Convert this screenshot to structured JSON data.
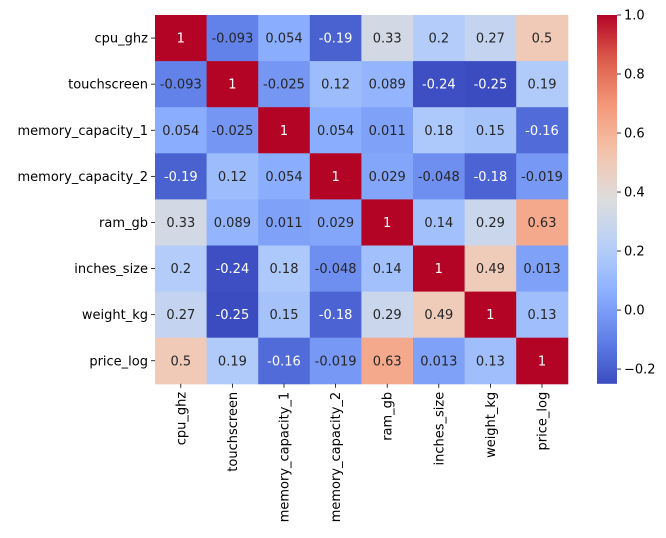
{
  "chart_data": {
    "type": "heatmap",
    "title": "",
    "xlabel": "",
    "ylabel": "",
    "colormap": "coolwarm",
    "vmin": -0.25,
    "vmax": 1.0,
    "colorbar_ticks": [
      "1.0",
      "0.8",
      "0.6",
      "0.4",
      "0.2",
      "0.0",
      "−0.2"
    ],
    "colorbar_tick_values": [
      1.0,
      0.8,
      0.6,
      0.4,
      0.2,
      0.0,
      -0.2
    ],
    "x_categories": [
      "cpu_ghz",
      "touchscreen",
      "memory_capacity_1",
      "memory_capacity_2",
      "ram_gb",
      "inches_size",
      "weight_kg",
      "price_log"
    ],
    "y_categories": [
      "cpu_ghz",
      "touchscreen",
      "memory_capacity_1",
      "memory_capacity_2",
      "ram_gb",
      "inches_size",
      "weight_kg",
      "price_log"
    ],
    "values": [
      [
        1,
        -0.093,
        0.054,
        -0.19,
        0.33,
        0.2,
        0.27,
        0.5
      ],
      [
        -0.093,
        1,
        -0.025,
        0.12,
        0.089,
        -0.24,
        -0.25,
        0.19
      ],
      [
        0.054,
        -0.025,
        1,
        0.054,
        0.011,
        0.18,
        0.15,
        -0.16
      ],
      [
        -0.19,
        0.12,
        0.054,
        1,
        0.029,
        -0.048,
        -0.18,
        -0.019
      ],
      [
        0.33,
        0.089,
        0.011,
        0.029,
        1,
        0.14,
        0.29,
        0.63
      ],
      [
        0.2,
        -0.24,
        0.18,
        -0.048,
        0.14,
        1,
        0.49,
        0.013
      ],
      [
        0.27,
        -0.25,
        0.15,
        -0.18,
        0.29,
        0.49,
        1,
        0.13
      ],
      [
        0.5,
        0.19,
        -0.16,
        -0.019,
        0.63,
        0.013,
        0.13,
        1
      ]
    ],
    "annotations": [
      [
        "1",
        "-0.093",
        "0.054",
        "-0.19",
        "0.33",
        "0.2",
        "0.27",
        "0.5"
      ],
      [
        "-0.093",
        "1",
        "-0.025",
        "0.12",
        "0.089",
        "-0.24",
        "-0.25",
        "0.19"
      ],
      [
        "0.054",
        "-0.025",
        "1",
        "0.054",
        "0.011",
        "0.18",
        "0.15",
        "-0.16"
      ],
      [
        "-0.19",
        "0.12",
        "0.054",
        "1",
        "0.029",
        "-0.048",
        "-0.18",
        "-0.019"
      ],
      [
        "0.33",
        "0.089",
        "0.011",
        "0.029",
        "1",
        "0.14",
        "0.29",
        "0.63"
      ],
      [
        "0.2",
        "-0.24",
        "0.18",
        "-0.048",
        "0.14",
        "1",
        "0.49",
        "0.013"
      ],
      [
        "0.27",
        "-0.25",
        "0.15",
        "-0.18",
        "0.29",
        "0.49",
        "1",
        "0.13"
      ],
      [
        "0.5",
        "0.19",
        "-0.16",
        "-0.019",
        "0.63",
        "0.013",
        "0.13",
        "1"
      ]
    ]
  }
}
